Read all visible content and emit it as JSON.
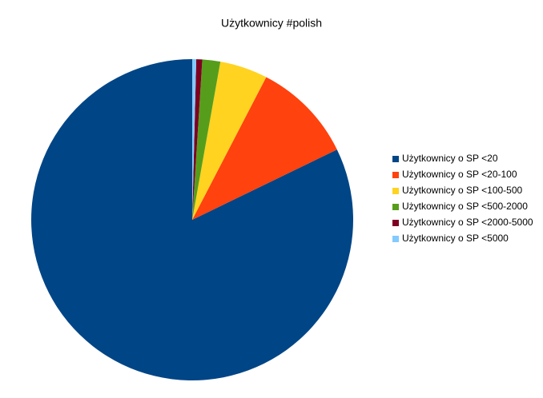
{
  "chart_data": {
    "type": "pie",
    "title": "Użytkownicy #polish",
    "categories": [
      "Użytkownicy o SP <20",
      "Użytkownicy o SP <20-100",
      "Użytkownicy o SP <100-500",
      "Użytkownicy o SP <500-2000",
      "Użytkownicy o SP <2000-5000",
      "Użytkownicy o SP <5000"
    ],
    "values": [
      82.2,
      10.2,
      4.8,
      1.8,
      0.6,
      0.4
    ],
    "colors": [
      "#004586",
      "#ff420e",
      "#ffd320",
      "#579d1c",
      "#7e0021",
      "#83caff"
    ],
    "legend": "right"
  }
}
